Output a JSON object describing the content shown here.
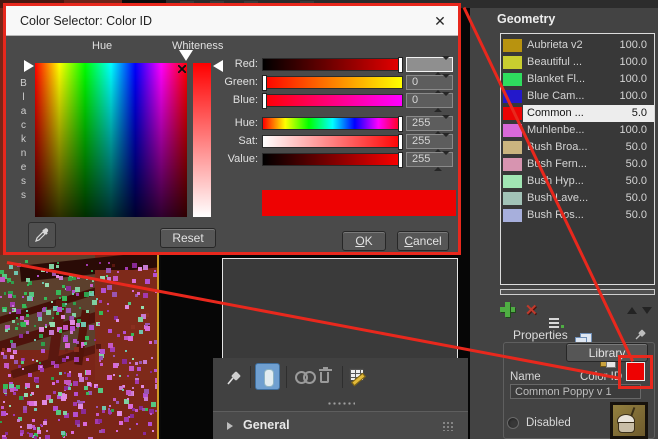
{
  "dialog": {
    "title": "Color Selector: Color ID",
    "close_glyph": "✕",
    "hue_label": "Hue",
    "whiteness_label": "Whiteness",
    "blackness_label": "Blackness",
    "channels": [
      {
        "label": "Red:",
        "value": "",
        "slider": "right",
        "editing": true
      },
      {
        "label": "Green:",
        "value": "0",
        "slider": "left"
      },
      {
        "label": "Blue:",
        "value": "0",
        "slider": "left"
      },
      {
        "label": "Hue:",
        "value": "255",
        "slider": "right"
      },
      {
        "label": "Sat:",
        "value": "255",
        "slider": "right"
      },
      {
        "label": "Value:",
        "value": "255",
        "slider": "right"
      }
    ],
    "current_color": "#ee0202",
    "reset_label": "Reset",
    "ok_label": "OK",
    "cancel_label": "Cancel"
  },
  "geometry_panel": {
    "header": "Geometry",
    "items": [
      {
        "name": "Aubrieta v2",
        "value": "100.0",
        "color": "#b8930f"
      },
      {
        "name": "Beautiful ...",
        "value": "100.0",
        "color": "#c9ce2f"
      },
      {
        "name": "Blanket Fl...",
        "value": "100.0",
        "color": "#2edd5e"
      },
      {
        "name": "Blue Cam...",
        "value": "100.0",
        "color": "#2318cb"
      },
      {
        "name": "Common ...",
        "value": "5.0",
        "color": "#ea0404",
        "selected": true
      },
      {
        "name": "Muhlenbe...",
        "value": "100.0",
        "color": "#d969d9"
      },
      {
        "name": "Bush Broa...",
        "value": "50.0",
        "color": "#cab47f"
      },
      {
        "name": "Bush Fern...",
        "value": "50.0",
        "color": "#d794b0"
      },
      {
        "name": "Bush Hyp...",
        "value": "50.0",
        "color": "#a1e5b3"
      },
      {
        "name": "Bush Lave...",
        "value": "50.0",
        "color": "#a2c3b7"
      },
      {
        "name": "Bush Ros...",
        "value": "50.0",
        "color": "#a7afdc"
      }
    ]
  },
  "properties": {
    "header": "Properties",
    "library_label": "Library",
    "name_label": "Name",
    "color_id_label": "Color ID",
    "color_id_value": "#ee0202",
    "name_value": "Common Poppy v 1",
    "disabled_label": "Disabled"
  },
  "mid_panel": {
    "general_label": "General"
  },
  "annotation": {
    "color": "#e8281d"
  }
}
